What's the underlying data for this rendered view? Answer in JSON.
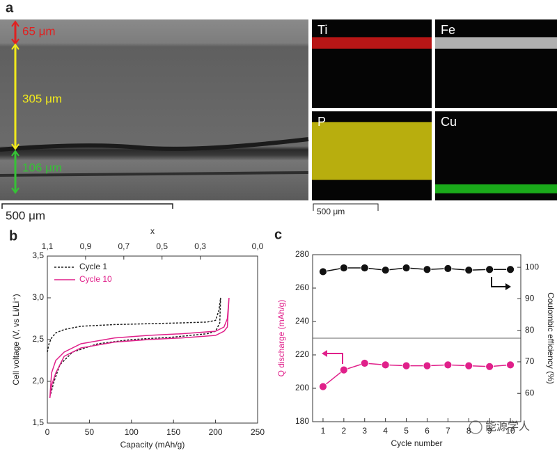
{
  "panel_a": {
    "label": "a",
    "sem_labels": [
      {
        "text": "65 μm",
        "color": "#e02020"
      },
      {
        "text": "305 μm",
        "color": "#f2ea1c"
      },
      {
        "text": "106 μm",
        "color": "#36c236"
      }
    ],
    "sem_scale": "500 μm",
    "maps": [
      {
        "element": "Ti",
        "color": "#d81a1a"
      },
      {
        "element": "Fe",
        "color": "#cfcfcf"
      },
      {
        "element": "P",
        "color": "#d8cc10"
      },
      {
        "element": "Cu",
        "color": "#1fc81f"
      }
    ],
    "map_scale": "500 μm"
  },
  "chart_data": [
    {
      "type": "line",
      "panel_label": "b",
      "xlabel": "Capacity (mAh/g)",
      "ylabel": "Cell voltage (V, vs Li/Li⁺)",
      "x2label": "x",
      "xlim": [
        0,
        250
      ],
      "xticks": [
        0,
        50,
        100,
        150,
        200,
        250
      ],
      "ylim": [
        1.5,
        3.5
      ],
      "yticks": [
        {
          "value": 1.5,
          "label": "1,5"
        },
        {
          "value": 2.0,
          "label": "2,0"
        },
        {
          "value": 2.5,
          "label": "2,5"
        },
        {
          "value": 3.0,
          "label": "3,0"
        },
        {
          "value": 3.5,
          "label": "3,5"
        }
      ],
      "x2lim": [
        1.1,
        0.0
      ],
      "x2ticks": [
        {
          "value": 1.1,
          "label": "1,1"
        },
        {
          "value": 0.9,
          "label": "0,9"
        },
        {
          "value": 0.7,
          "label": "0,7"
        },
        {
          "value": 0.5,
          "label": "0,5"
        },
        {
          "value": 0.3,
          "label": "0,3"
        },
        {
          "value": 0.0,
          "label": "0,0"
        }
      ],
      "legend": "upper left",
      "series": [
        {
          "name": "Cycle 1",
          "color": "#222222",
          "dashed": true,
          "x": [
            0,
            2,
            5,
            10,
            20,
            40,
            80,
            120,
            160,
            190,
            200,
            204,
            206,
            205,
            200,
            190,
            150,
            100,
            60,
            30,
            15,
            8,
            4
          ],
          "values": [
            2.35,
            2.45,
            2.52,
            2.58,
            2.62,
            2.66,
            2.68,
            2.69,
            2.7,
            2.71,
            2.73,
            2.85,
            3.0,
            2.7,
            2.6,
            2.57,
            2.53,
            2.5,
            2.45,
            2.35,
            2.2,
            2.0,
            1.85
          ]
        },
        {
          "name": "Cycle 10",
          "color": "#e0208a",
          "dashed": false,
          "x": [
            3,
            5,
            10,
            20,
            40,
            80,
            120,
            160,
            200,
            210,
            214,
            216,
            214,
            210,
            200,
            160,
            120,
            80,
            40,
            20,
            10,
            5,
            3
          ],
          "values": [
            1.8,
            2.1,
            2.25,
            2.35,
            2.45,
            2.52,
            2.55,
            2.57,
            2.6,
            2.65,
            2.75,
            3.0,
            2.65,
            2.6,
            2.55,
            2.52,
            2.5,
            2.47,
            2.4,
            2.3,
            2.1,
            1.95,
            1.8
          ]
        }
      ]
    },
    {
      "type": "line",
      "panel_label": "c",
      "xlabel": "Cycle number",
      "ylabel": "Q discharge (mAh/g)",
      "y2label": "Coulombic efficiency (%)",
      "xlim": [
        0.5,
        10.5
      ],
      "xticks": [
        1,
        2,
        3,
        4,
        5,
        6,
        7,
        8,
        9,
        10
      ],
      "ylim": [
        180,
        280
      ],
      "yticks": [
        180,
        200,
        220,
        240,
        260,
        280
      ],
      "y2lim": [
        51,
        104
      ],
      "y2ticks": [
        60,
        70,
        80,
        90,
        100
      ],
      "markers": true,
      "series": [
        {
          "name": "Q discharge",
          "color": "#e0208a",
          "x": [
            1,
            2,
            3,
            4,
            5,
            6,
            7,
            8,
            9,
            10
          ],
          "values": [
            201,
            211,
            215,
            214,
            213.5,
            213.5,
            214,
            213.5,
            213,
            214
          ]
        },
        {
          "name": "Coulombic efficiency",
          "color": "#111111",
          "axis": "y2",
          "x": [
            1,
            2,
            3,
            4,
            5,
            6,
            7,
            8,
            9,
            10
          ],
          "values": [
            98.6,
            99.8,
            99.8,
            99.1,
            99.8,
            99.3,
            99.6,
            99.1,
            99.3,
            99.3
          ]
        }
      ]
    }
  ],
  "watermark": "能源学人"
}
